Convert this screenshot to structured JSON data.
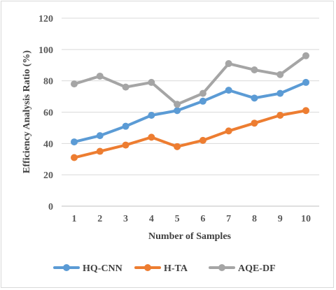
{
  "chart_data": {
    "type": "line",
    "title": "",
    "xlabel": "Number of Samples",
    "ylabel": "Efficiency Analysis Ratio (%)",
    "x": [
      1,
      2,
      3,
      4,
      5,
      6,
      7,
      8,
      9,
      10
    ],
    "ylim": [
      0,
      120
    ],
    "yticks": [
      0,
      20,
      40,
      60,
      80,
      100,
      120
    ],
    "grid": true,
    "legend_position": "bottom",
    "series": [
      {
        "name": "HQ-CNN",
        "color": "#5b9bd5",
        "values": [
          41,
          45,
          51,
          58,
          61,
          67,
          74,
          69,
          72,
          79
        ]
      },
      {
        "name": "H-TA",
        "color": "#ed7d31",
        "values": [
          31,
          35,
          39,
          44,
          38,
          42,
          48,
          53,
          58,
          61
        ]
      },
      {
        "name": "AQE-DF",
        "color": "#a5a5a5",
        "values": [
          78,
          83,
          76,
          79,
          65,
          72,
          91,
          87,
          84,
          96
        ]
      }
    ]
  }
}
